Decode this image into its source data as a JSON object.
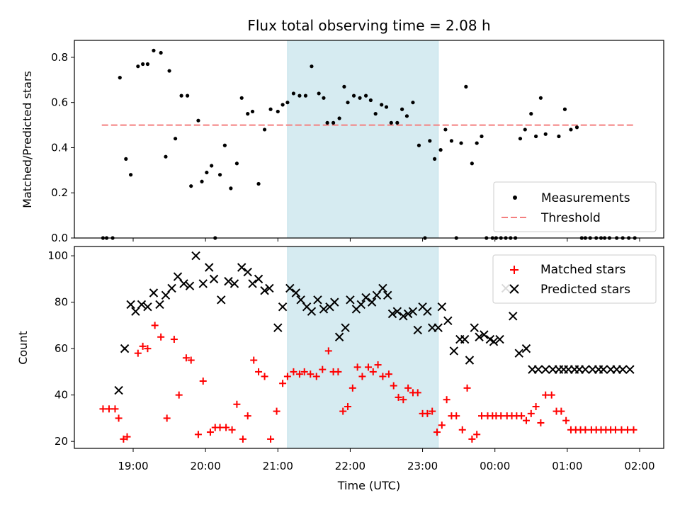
{
  "title": "Flux total observing time = 2.08 h",
  "chart_data": [
    {
      "type": "scatter",
      "ylabel": "Matched/Predicted stars",
      "ylim": [
        0,
        0.875
      ],
      "yticks": [
        0.0,
        0.2,
        0.4,
        0.6,
        0.8
      ],
      "ytick_labels": [
        "0.0",
        "0.2",
        "0.4",
        "0.6",
        "0.8"
      ],
      "shaded_span": [
        "21:08",
        "23:13"
      ],
      "shade_color": "#d6ebf1",
      "threshold": {
        "name": "Threshold",
        "value": 0.5,
        "x_range": [
          "18:34",
          "23:59"
        ],
        "x_range2": [
          "00:31",
          "01:56"
        ],
        "color": "#f47f7f"
      },
      "legend": [
        "Measurements",
        "Threshold"
      ],
      "legend_loc": "lower right",
      "series": [
        {
          "name": "Measurements",
          "color": "#000000",
          "x": [
            "18:35",
            "18:38",
            "18:43",
            "18:49",
            "18:54",
            "18:58",
            "19:04",
            "19:08",
            "19:12",
            "19:17",
            "19:23",
            "19:27",
            "19:30",
            "19:35",
            "19:40",
            "19:45",
            "19:48",
            "19:54",
            "19:57",
            "20:01",
            "20:05",
            "20:08",
            "20:12",
            "20:16",
            "20:21",
            "20:26",
            "20:30",
            "20:35",
            "20:39",
            "20:44",
            "20:49",
            "20:54",
            "21:00",
            "21:04",
            "21:08",
            "21:13",
            "21:18",
            "21:23",
            "21:28",
            "21:34",
            "21:38",
            "21:41",
            "21:46",
            "21:51",
            "21:55",
            "21:58",
            "22:03",
            "22:08",
            "22:13",
            "22:17",
            "22:21",
            "22:26",
            "22:30",
            "22:34",
            "22:39",
            "22:43",
            "22:47",
            "22:52",
            "22:57",
            "23:02",
            "23:06",
            "23:10",
            "23:15",
            "23:19",
            "23:24",
            "23:28",
            "23:32",
            "23:36",
            "23:41",
            "23:45",
            "23:49",
            "23:53",
            "23:58",
            "00:01",
            "00:05",
            "00:09",
            "00:13",
            "00:17",
            "00:21",
            "00:25",
            "00:30",
            "00:34",
            "00:38",
            "00:42",
            "00:53",
            "00:58",
            "01:03",
            "01:08",
            "01:12",
            "01:15",
            "01:19",
            "01:24",
            "01:28",
            "01:31",
            "01:35",
            "01:41",
            "01:46",
            "01:51",
            "01:56"
          ],
          "y": [
            0.0,
            0.0,
            0.0,
            0.71,
            0.35,
            0.28,
            0.76,
            0.77,
            0.77,
            0.83,
            0.82,
            0.36,
            0.74,
            0.44,
            0.63,
            0.63,
            0.23,
            0.52,
            0.25,
            0.29,
            0.32,
            0.0,
            0.28,
            0.41,
            0.22,
            0.33,
            0.62,
            0.55,
            0.56,
            0.24,
            0.48,
            0.57,
            0.56,
            0.59,
            0.6,
            0.64,
            0.63,
            0.63,
            0.76,
            0.64,
            0.62,
            0.51,
            0.51,
            0.53,
            0.67,
            0.6,
            0.63,
            0.62,
            0.63,
            0.61,
            0.55,
            0.59,
            0.58,
            0.51,
            0.51,
            0.57,
            0.54,
            0.6,
            0.41,
            0.0,
            0.43,
            0.35,
            0.39,
            0.48,
            0.43,
            0.0,
            0.42,
            0.67,
            0.33,
            0.42,
            0.45,
            0.0,
            0.0,
            0.0,
            0.0,
            0.0,
            0.0,
            0.0,
            0.44,
            0.48,
            0.55,
            0.45,
            0.62,
            0.46,
            0.45,
            0.57,
            0.48,
            0.49,
            0.0,
            0.0,
            0.0,
            0.0,
            0.0,
            0.0,
            0.0,
            0.0,
            0.0,
            0.0,
            0.0
          ]
        }
      ]
    },
    {
      "type": "scatter",
      "ylabel": "Count",
      "xlabel": "Time (UTC)",
      "ylim": [
        17,
        104
      ],
      "yticks": [
        20,
        40,
        60,
        80,
        100
      ],
      "ytick_labels": [
        "20",
        "40",
        "60",
        "80",
        "100"
      ],
      "xticks": [
        "19:00",
        "20:00",
        "21:00",
        "22:00",
        "23:00",
        "00:00",
        "01:00",
        "02:00"
      ],
      "shaded_span": [
        "21:08",
        "23:13"
      ],
      "legend": [
        "Matched stars",
        "Predicted stars"
      ],
      "legend_loc": "upper right",
      "series": [
        {
          "name": "Matched stars",
          "marker": "+",
          "color": "#ff0000",
          "x": [
            "18:35",
            "18:40",
            "18:45",
            "18:48",
            "18:52",
            "18:55",
            "19:04",
            "19:08",
            "19:12",
            "19:18",
            "19:23",
            "19:28",
            "19:34",
            "19:38",
            "19:44",
            "19:48",
            "19:54",
            "19:58",
            "20:04",
            "20:08",
            "20:12",
            "20:17",
            "20:22",
            "20:26",
            "20:31",
            "20:35",
            "20:40",
            "20:44",
            "20:49",
            "20:54",
            "20:59",
            "21:04",
            "21:08",
            "21:13",
            "21:18",
            "21:22",
            "21:27",
            "21:32",
            "21:37",
            "21:42",
            "21:46",
            "21:50",
            "21:54",
            "21:58",
            "22:02",
            "22:06",
            "22:10",
            "22:15",
            "22:19",
            "22:23",
            "22:27",
            "22:32",
            "22:36",
            "22:40",
            "22:44",
            "22:48",
            "22:52",
            "22:56",
            "23:00",
            "23:04",
            "23:08",
            "23:12",
            "23:16",
            "23:20",
            "23:24",
            "23:28",
            "23:33",
            "23:37",
            "23:41",
            "23:45",
            "23:49",
            "23:54",
            "23:58",
            "00:01",
            "00:05",
            "00:10",
            "00:14",
            "00:18",
            "00:22",
            "00:26",
            "00:30",
            "00:34",
            "00:38",
            "00:42",
            "00:47",
            "00:51",
            "00:55",
            "00:59",
            "01:03",
            "01:07",
            "01:11",
            "01:15",
            "01:20",
            "01:24",
            "01:28",
            "01:32",
            "01:36",
            "01:40",
            "01:45",
            "01:50",
            "01:55"
          ],
          "y": [
            34,
            34,
            34,
            30,
            21,
            22,
            58,
            61,
            60,
            70,
            65,
            30,
            64,
            40,
            56,
            55,
            23,
            46,
            24,
            26,
            26,
            26,
            25,
            36,
            21,
            31,
            55,
            50,
            48,
            21,
            33,
            45,
            48,
            50,
            49,
            50,
            49,
            48,
            51,
            59,
            50,
            50,
            33,
            35,
            43,
            52,
            48,
            52,
            50,
            53,
            48,
            49,
            44,
            39,
            38,
            43,
            41,
            41,
            32,
            32,
            33,
            24,
            27,
            38,
            31,
            31,
            25,
            43,
            21,
            23,
            31,
            31,
            31,
            31,
            31,
            31,
            31,
            31,
            31,
            29,
            32,
            35,
            28,
            40,
            40,
            33,
            33,
            29,
            25,
            25,
            25,
            25,
            25,
            25,
            25,
            25,
            25,
            25,
            25,
            25,
            25
          ]
        },
        {
          "name": "Predicted stars",
          "marker": "x",
          "color": "#000000",
          "x": [
            "18:48",
            "18:53",
            "18:58",
            "19:02",
            "19:07",
            "19:12",
            "19:17",
            "19:22",
            "19:27",
            "19:32",
            "19:37",
            "19:42",
            "19:47",
            "19:52",
            "19:58",
            "20:03",
            "20:07",
            "20:13",
            "20:19",
            "20:24",
            "20:30",
            "20:35",
            "20:39",
            "20:44",
            "20:49",
            "20:53",
            "21:00",
            "21:04",
            "21:10",
            "21:15",
            "21:19",
            "21:24",
            "21:28",
            "21:33",
            "21:38",
            "21:43",
            "21:47",
            "21:51",
            "21:56",
            "22:00",
            "22:05",
            "22:09",
            "22:13",
            "22:18",
            "22:22",
            "22:27",
            "22:31",
            "22:35",
            "22:39",
            "22:44",
            "22:48",
            "22:52",
            "22:56",
            "23:00",
            "23:04",
            "23:08",
            "23:13",
            "23:16",
            "23:21",
            "23:26",
            "23:31",
            "23:35",
            "23:39",
            "23:43",
            "23:47",
            "23:51",
            "23:56",
            "23:59",
            "00:04",
            "00:09",
            "00:15",
            "00:20",
            "00:26",
            "00:31",
            "00:36",
            "00:42",
            "00:48",
            "00:53",
            "00:57",
            "01:01",
            "01:06",
            "01:10",
            "01:15",
            "01:21",
            "01:26",
            "01:30",
            "01:36",
            "01:41",
            "01:46",
            "01:52"
          ],
          "y": [
            42,
            60,
            79,
            76,
            79,
            78,
            84,
            79,
            83,
            86,
            91,
            88,
            87,
            100,
            88,
            95,
            90,
            81,
            89,
            88,
            95,
            93,
            88,
            90,
            85,
            86,
            69,
            78,
            86,
            84,
            81,
            78,
            76,
            81,
            77,
            78,
            80,
            65,
            69,
            81,
            77,
            79,
            82,
            80,
            83,
            86,
            83,
            75,
            76,
            74,
            75,
            76,
            68,
            78,
            76,
            69,
            69,
            78,
            72,
            59,
            64,
            64,
            55,
            69,
            65,
            66,
            64,
            63,
            64,
            86,
            74,
            58,
            60,
            51,
            51,
            51,
            51,
            51,
            51,
            51,
            51,
            51,
            51,
            51,
            51,
            51,
            51,
            51,
            51,
            51
          ]
        }
      ]
    }
  ]
}
